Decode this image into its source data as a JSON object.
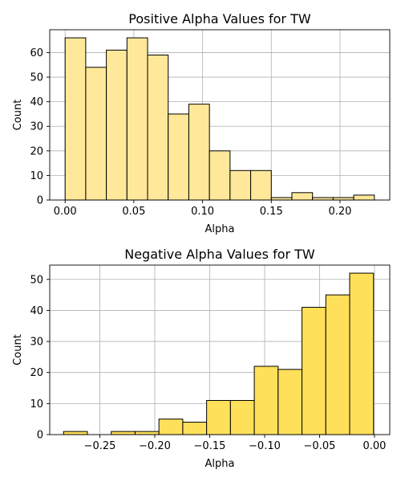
{
  "chart_data": [
    {
      "type": "bar",
      "title": "Positive Alpha Values for TW",
      "xlabel": "Alpha",
      "ylabel": "Count",
      "color": "#FFE899",
      "xlim": [
        -0.0112,
        0.2362
      ],
      "ylim": [
        0,
        69.3
      ],
      "xticks": [
        0.0,
        0.05,
        0.1,
        0.15,
        0.2
      ],
      "xtick_labels": [
        "0.00",
        "0.05",
        "0.10",
        "0.15",
        "0.20"
      ],
      "yticks": [
        0,
        10,
        20,
        30,
        40,
        50,
        60
      ],
      "ytick_labels": [
        "0",
        "10",
        "20",
        "30",
        "40",
        "50",
        "60"
      ],
      "grid": true,
      "bins": [
        {
          "x0": 0.0,
          "x1": 0.015,
          "value": 66
        },
        {
          "x0": 0.015,
          "x1": 0.03,
          "value": 54
        },
        {
          "x0": 0.03,
          "x1": 0.045,
          "value": 61
        },
        {
          "x0": 0.045,
          "x1": 0.06,
          "value": 66
        },
        {
          "x0": 0.06,
          "x1": 0.075,
          "value": 59
        },
        {
          "x0": 0.075,
          "x1": 0.09,
          "value": 35
        },
        {
          "x0": 0.09,
          "x1": 0.105,
          "value": 39
        },
        {
          "x0": 0.105,
          "x1": 0.12,
          "value": 20
        },
        {
          "x0": 0.12,
          "x1": 0.135,
          "value": 12
        },
        {
          "x0": 0.135,
          "x1": 0.15,
          "value": 12
        },
        {
          "x0": 0.15,
          "x1": 0.165,
          "value": 1
        },
        {
          "x0": 0.165,
          "x1": 0.18,
          "value": 3
        },
        {
          "x0": 0.18,
          "x1": 0.195,
          "value": 1
        },
        {
          "x0": 0.195,
          "x1": 0.21,
          "value": 1
        },
        {
          "x0": 0.21,
          "x1": 0.225,
          "value": 2
        }
      ]
    },
    {
      "type": "bar",
      "title": "Negative Alpha Values for TW",
      "xlabel": "Alpha",
      "ylabel": "Count",
      "color": "#FFE05A",
      "xlim": [
        -0.2956,
        0.0139
      ],
      "ylim": [
        0,
        54.6
      ],
      "xticks": [
        -0.25,
        -0.2,
        -0.15,
        -0.1,
        -0.05,
        0.0
      ],
      "xtick_labels": [
        "−0.25",
        "−0.20",
        "−0.15",
        "−0.10",
        "−0.05",
        "0.00"
      ],
      "yticks": [
        0,
        10,
        20,
        30,
        40,
        50
      ],
      "ytick_labels": [
        "0",
        "10",
        "20",
        "30",
        "40",
        "50"
      ],
      "grid": true,
      "bins": [
        {
          "x0": -0.283,
          "x1": -0.2613,
          "value": 1
        },
        {
          "x0": -0.2613,
          "x1": -0.2396,
          "value": 0
        },
        {
          "x0": -0.2396,
          "x1": -0.2179,
          "value": 1
        },
        {
          "x0": -0.2179,
          "x1": -0.1962,
          "value": 1
        },
        {
          "x0": -0.1962,
          "x1": -0.1745,
          "value": 5
        },
        {
          "x0": -0.1745,
          "x1": -0.1528,
          "value": 4
        },
        {
          "x0": -0.1528,
          "x1": -0.1311,
          "value": 11
        },
        {
          "x0": -0.1311,
          "x1": -0.1094,
          "value": 11
        },
        {
          "x0": -0.1094,
          "x1": -0.0877,
          "value": 22
        },
        {
          "x0": -0.0877,
          "x1": -0.066,
          "value": 21
        },
        {
          "x0": -0.066,
          "x1": -0.0443,
          "value": 41
        },
        {
          "x0": -0.0443,
          "x1": -0.0226,
          "value": 45
        },
        {
          "x0": -0.0226,
          "x1": -0.0009,
          "value": 52
        }
      ]
    }
  ]
}
